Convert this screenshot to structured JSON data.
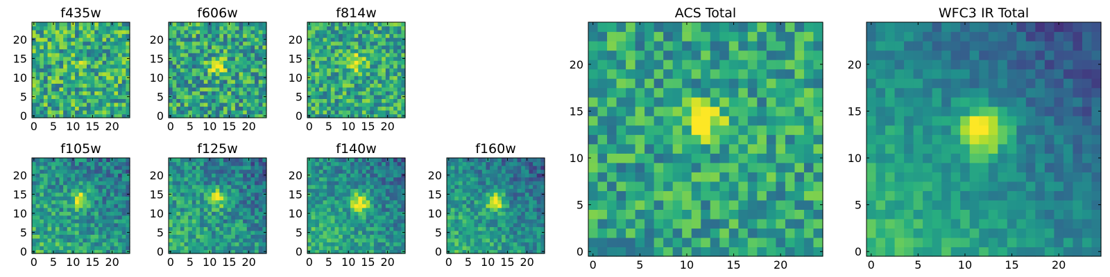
{
  "figure": {
    "colormap": "viridis",
    "colors": {
      "low": "#440154",
      "mid": "#21918c",
      "high": "#fde725",
      "axis": "#000000"
    }
  },
  "chart_data": [
    {
      "type": "heatmap",
      "title": "f435w",
      "grid_size": 25,
      "xlim": [
        0,
        24
      ],
      "ylim": [
        0,
        24
      ],
      "xticks": [
        "0",
        "5",
        "10",
        "15",
        "20"
      ],
      "yticks": [
        "0",
        "5",
        "10",
        "15",
        "20"
      ],
      "mean_level": 0.62,
      "noise": 0.55,
      "source_amplitude": 0.1,
      "source_center": [
        12,
        14
      ],
      "source_sigma": 1.5,
      "gradient": 0,
      "seed": 11
    },
    {
      "type": "heatmap",
      "title": "f606w",
      "grid_size": 25,
      "xlim": [
        0,
        24
      ],
      "ylim": [
        0,
        24
      ],
      "xticks": [
        "0",
        "5",
        "10",
        "15",
        "20"
      ],
      "yticks": [
        "0",
        "5",
        "10",
        "15",
        "20"
      ],
      "mean_level": 0.58,
      "noise": 0.55,
      "source_amplitude": 0.45,
      "source_center": [
        12,
        13
      ],
      "source_sigma": 1.6,
      "gradient": 0,
      "seed": 23
    },
    {
      "type": "heatmap",
      "title": "f814w",
      "grid_size": 25,
      "xlim": [
        0,
        24
      ],
      "ylim": [
        0,
        24
      ],
      "xticks": [
        "0",
        "5",
        "10",
        "15",
        "20"
      ],
      "yticks": [
        "0",
        "5",
        "10",
        "15",
        "20"
      ],
      "mean_level": 0.6,
      "noise": 0.5,
      "source_amplitude": 0.4,
      "source_center": [
        12,
        14
      ],
      "source_sigma": 1.5,
      "gradient": 0,
      "seed": 37
    },
    {
      "type": "heatmap",
      "title": "f105w",
      "grid_size": 25,
      "xlim": [
        0,
        24
      ],
      "ylim": [
        0,
        24
      ],
      "xticks": [
        "0",
        "5",
        "10",
        "15",
        "20"
      ],
      "yticks": [
        "0",
        "5",
        "10",
        "15",
        "20"
      ],
      "mean_level": 0.5,
      "noise": 0.4,
      "source_amplitude": 0.45,
      "source_center": [
        12,
        14
      ],
      "source_sigma": 1.8,
      "gradient": 0.3,
      "seed": 41
    },
    {
      "type": "heatmap",
      "title": "f125w",
      "grid_size": 25,
      "xlim": [
        0,
        24
      ],
      "ylim": [
        0,
        24
      ],
      "xticks": [
        "0",
        "5",
        "10",
        "15",
        "20"
      ],
      "yticks": [
        "0",
        "5",
        "10",
        "15",
        "20"
      ],
      "mean_level": 0.5,
      "noise": 0.4,
      "source_amplitude": 0.4,
      "source_center": [
        12,
        14
      ],
      "source_sigma": 1.8,
      "gradient": 0.3,
      "seed": 53
    },
    {
      "type": "heatmap",
      "title": "f140w",
      "grid_size": 25,
      "xlim": [
        0,
        24
      ],
      "ylim": [
        0,
        24
      ],
      "xticks": [
        "0",
        "5",
        "10",
        "15",
        "20"
      ],
      "yticks": [
        "0",
        "5",
        "10",
        "15",
        "20"
      ],
      "mean_level": 0.5,
      "noise": 0.35,
      "source_amplitude": 0.55,
      "source_center": [
        13,
        13
      ],
      "source_sigma": 1.8,
      "gradient": 0.35,
      "seed": 67
    },
    {
      "type": "heatmap",
      "title": "f160w",
      "grid_size": 25,
      "xlim": [
        0,
        24
      ],
      "ylim": [
        0,
        24
      ],
      "xticks": [
        "0",
        "5",
        "10",
        "15",
        "20"
      ],
      "yticks": [
        "0",
        "5",
        "10",
        "15",
        "20"
      ],
      "mean_level": 0.48,
      "noise": 0.35,
      "source_amplitude": 0.55,
      "source_center": [
        12,
        13
      ],
      "source_sigma": 1.7,
      "gradient": 0.4,
      "seed": 79
    },
    {
      "type": "heatmap",
      "title": "ACS Total",
      "grid_size": 25,
      "xlim": [
        0,
        24
      ],
      "ylim": [
        0,
        24
      ],
      "xticks": [
        "0",
        "5",
        "10",
        "15",
        "20"
      ],
      "yticks": [
        "0",
        "5",
        "10",
        "15",
        "20"
      ],
      "mean_level": 0.58,
      "noise": 0.45,
      "source_amplitude": 0.5,
      "source_center": [
        12,
        14
      ],
      "source_sigma": 1.4,
      "gradient": 0,
      "seed": 97
    },
    {
      "type": "heatmap",
      "title": "WFC3 IR Total",
      "grid_size": 25,
      "xlim": [
        0,
        24
      ],
      "ylim": [
        0,
        24
      ],
      "xticks": [
        "0",
        "5",
        "10",
        "15",
        "20"
      ],
      "yticks": [
        "0",
        "5",
        "10",
        "15",
        "20"
      ],
      "mean_level": 0.45,
      "noise": 0.22,
      "source_amplitude": 0.6,
      "source_center": [
        12,
        13
      ],
      "source_sigma": 1.8,
      "gradient": 0.5,
      "seed": 113
    }
  ]
}
